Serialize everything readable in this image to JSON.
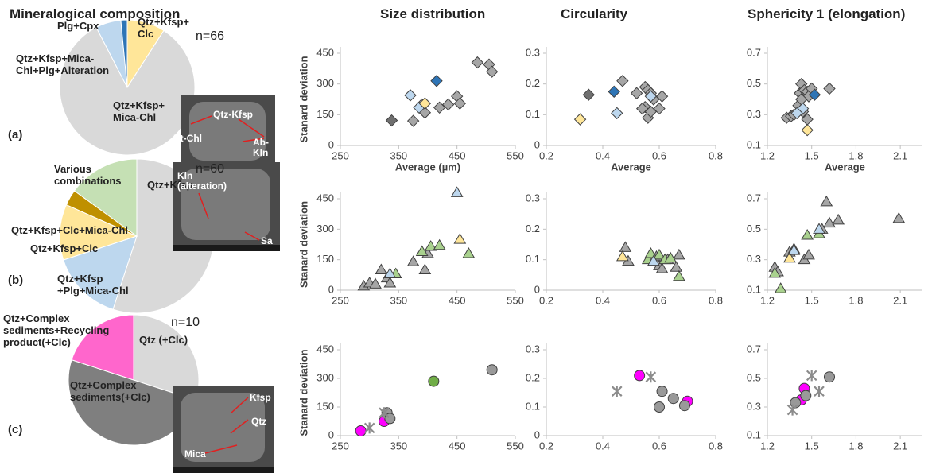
{
  "column_titles": [
    "Mineralogical composition",
    "Size distribution",
    "Circularity",
    "Sphericity 1 (elongation)"
  ],
  "panel_labels": [
    "(a)",
    "(b)",
    "(c)"
  ],
  "chart_data": [
    {
      "type": "pie",
      "annotation": "n=66",
      "categories": [
        "Qtz+Kfsp+\nClc",
        "Qtz+Kfsp+\nMica-Chl",
        "Qtz+Kfsp+Mica-\nChl+Plg+Alteration",
        "Plg+Cpx"
      ],
      "values": [
        6,
        55,
        4,
        1
      ],
      "colors": [
        "#ffe699",
        "#d9d9d9",
        "#bdd7ee",
        "#2e75b6"
      ],
      "image_labels": [
        "Qtz-Kfsp",
        "Bt-Chl",
        "Ab-\nKln"
      ]
    },
    {
      "type": "pie",
      "annotation": "n=60",
      "categories": [
        "Qtz+Kfsp",
        "Qtz+Kfsp\n+Plg+Mica-Chl",
        "Qtz+Kfsp+Clc",
        "Qtz+Kfsp+Clc+Mica-Chl",
        "Various\ncombinations"
      ],
      "values": [
        33,
        9,
        7,
        2,
        9
      ],
      "colors": [
        "#d9d9d9",
        "#bdd7ee",
        "#ffe699",
        "#bf9000",
        "#c5e0b4"
      ],
      "image_labels": [
        "Kln\n(alteration)",
        "Sa"
      ]
    },
    {
      "type": "pie",
      "annotation": "n=10",
      "categories": [
        "Qtz (+Clc)",
        "Qtz+Complex\nsediments(+Clc)",
        "Qtz+Complex\nsediments+Recycling\nproduct(+Clc)"
      ],
      "values": [
        3,
        5,
        2
      ],
      "colors": [
        "#d9d9d9",
        "#7f7f7f",
        "#ff66cc"
      ],
      "image_labels": [
        "Kfsp",
        "Qtz",
        "Mica"
      ]
    },
    {
      "type": "scatter",
      "xlabel": "Average (µm)",
      "ylabel": "Stanard deviation",
      "xlim": [
        250,
        550
      ],
      "xticks": [
        250,
        350,
        450,
        550
      ],
      "ylim": [
        0,
        450
      ],
      "yticks": [
        0,
        150,
        300,
        450
      ],
      "series": [
        {
          "color": "#a6a6a6",
          "marker": "diamond",
          "x": [
            375,
            395,
            420,
            435,
            450,
            455,
            485,
            505,
            510,
            390
          ],
          "y": [
            120,
            160,
            185,
            200,
            240,
            205,
            405,
            395,
            360,
            200
          ]
        },
        {
          "color": "#6f6f6f",
          "marker": "diamond",
          "x": [
            338
          ],
          "y": [
            122
          ]
        },
        {
          "color": "#bdd7ee",
          "marker": "diamond",
          "x": [
            370,
            385
          ],
          "y": [
            245,
            185
          ]
        },
        {
          "color": "#ffe699",
          "marker": "diamond",
          "x": [
            395
          ],
          "y": [
            205
          ]
        },
        {
          "color": "#2e75b6",
          "marker": "diamond",
          "x": [
            415
          ],
          "y": [
            315
          ]
        }
      ]
    },
    {
      "type": "scatter",
      "xlabel": "Average",
      "xlim": [
        0.2,
        0.8
      ],
      "xticks": [
        0.2,
        0.4,
        0.6,
        0.8
      ],
      "ylim": [
        0,
        0.3
      ],
      "yticks": [
        0,
        0.1,
        0.2,
        0.3
      ],
      "series": [
        {
          "color": "#a6a6a6",
          "marker": "diamond",
          "x": [
            0.47,
            0.52,
            0.55,
            0.56,
            0.57,
            0.55,
            0.54,
            0.56,
            0.57,
            0.58,
            0.61,
            0.6
          ],
          "y": [
            0.21,
            0.17,
            0.19,
            0.18,
            0.17,
            0.125,
            0.12,
            0.09,
            0.11,
            0.15,
            0.16,
            0.12
          ]
        },
        {
          "color": "#6f6f6f",
          "marker": "diamond",
          "x": [
            0.35
          ],
          "y": [
            0.165
          ]
        },
        {
          "color": "#2e75b6",
          "marker": "diamond",
          "x": [
            0.44
          ],
          "y": [
            0.175
          ]
        },
        {
          "color": "#bdd7ee",
          "marker": "diamond",
          "x": [
            0.45,
            0.57
          ],
          "y": [
            0.105,
            0.16
          ]
        },
        {
          "color": "#ffe699",
          "marker": "diamond",
          "x": [
            0.32
          ],
          "y": [
            0.085
          ]
        }
      ]
    },
    {
      "type": "scatter",
      "xlabel": "Average",
      "xlim": [
        1.2,
        2.25
      ],
      "xticks": [
        1.2,
        1.5,
        1.8,
        2.1
      ],
      "ylim": [
        0.1,
        0.7
      ],
      "yticks": [
        0.1,
        0.3,
        0.5,
        0.7
      ],
      "series": [
        {
          "color": "#a6a6a6",
          "marker": "diamond",
          "x": [
            1.33,
            1.36,
            1.38,
            1.41,
            1.42,
            1.43,
            1.45,
            1.47,
            1.48,
            1.5,
            1.43,
            1.62,
            1.47,
            1.44
          ],
          "y": [
            0.28,
            0.29,
            0.3,
            0.36,
            0.44,
            0.5,
            0.46,
            0.45,
            0.42,
            0.47,
            0.4,
            0.47,
            0.27,
            0.32
          ]
        },
        {
          "color": "#bdd7ee",
          "marker": "diamond",
          "x": [
            1.44,
            1.4
          ],
          "y": [
            0.34,
            0.31
          ]
        },
        {
          "color": "#2e75b6",
          "marker": "diamond",
          "x": [
            1.52
          ],
          "y": [
            0.43
          ]
        },
        {
          "color": "#ffe699",
          "marker": "diamond",
          "x": [
            1.47
          ],
          "y": [
            0.2
          ]
        }
      ]
    },
    {
      "type": "scatter",
      "ylabel": "Stanard deviation",
      "xlim": [
        250,
        550
      ],
      "xticks": [
        250,
        350,
        450,
        550
      ],
      "ylim": [
        0,
        450
      ],
      "yticks": [
        0,
        150,
        300,
        450
      ],
      "series": [
        {
          "color": "#a6a6a6",
          "marker": "triangle",
          "x": [
            290,
            300,
            310,
            320,
            330,
            335,
            375,
            395,
            400
          ],
          "y": [
            20,
            35,
            30,
            100,
            60,
            35,
            140,
            100,
            180
          ]
        },
        {
          "color": "#a9d18e",
          "marker": "triangle",
          "x": [
            345,
            390,
            405,
            420,
            470
          ],
          "y": [
            80,
            190,
            215,
            220,
            180
          ]
        },
        {
          "color": "#bdd7ee",
          "marker": "triangle",
          "x": [
            335,
            450
          ],
          "y": [
            80,
            480
          ]
        },
        {
          "color": "#ffe699",
          "marker": "triangle",
          "x": [
            455
          ],
          "y": [
            250
          ]
        }
      ]
    },
    {
      "type": "scatter",
      "xlim": [
        0.2,
        0.8
      ],
      "xticks": [
        0.2,
        0.4,
        0.6,
        0.8
      ],
      "ylim": [
        0,
        0.3
      ],
      "yticks": [
        0,
        0.1,
        0.2,
        0.3
      ],
      "series": [
        {
          "color": "#a6a6a6",
          "marker": "triangle",
          "x": [
            0.48,
            0.49,
            0.59,
            0.6,
            0.61,
            0.63,
            0.67,
            0.66
          ],
          "y": [
            0.14,
            0.095,
            0.11,
            0.08,
            0.07,
            0.1,
            0.115,
            0.075
          ]
        },
        {
          "color": "#a9d18e",
          "marker": "triangle",
          "x": [
            0.56,
            0.57,
            0.6,
            0.62,
            0.64,
            0.67
          ],
          "y": [
            0.1,
            0.12,
            0.115,
            0.1,
            0.105,
            0.045
          ]
        },
        {
          "color": "#ffe699",
          "marker": "triangle",
          "x": [
            0.47
          ],
          "y": [
            0.11
          ]
        },
        {
          "color": "#bdd7ee",
          "marker": "triangle",
          "x": [
            0.58
          ],
          "y": [
            0.095
          ]
        }
      ]
    },
    {
      "type": "scatter",
      "xlim": [
        1.2,
        2.25
      ],
      "xticks": [
        1.2,
        1.5,
        1.8,
        2.1
      ],
      "ylim": [
        0.1,
        0.7
      ],
      "yticks": [
        0.1,
        0.3,
        0.5,
        0.7
      ],
      "series": [
        {
          "color": "#a6a6a6",
          "marker": "triangle",
          "x": [
            1.25,
            1.27,
            1.35,
            1.38,
            1.45,
            1.48,
            1.57,
            1.6,
            1.62,
            1.68,
            2.09
          ],
          "y": [
            0.25,
            0.22,
            0.35,
            0.37,
            0.3,
            0.33,
            0.5,
            0.68,
            0.54,
            0.56,
            0.57
          ]
        },
        {
          "color": "#a9d18e",
          "marker": "triangle",
          "x": [
            1.25,
            1.29,
            1.47,
            1.55
          ],
          "y": [
            0.21,
            0.11,
            0.46,
            0.47
          ]
        },
        {
          "color": "#ffe699",
          "marker": "triangle",
          "x": [
            1.35
          ],
          "y": [
            0.31
          ]
        },
        {
          "color": "#bdd7ee",
          "marker": "triangle",
          "x": [
            1.55,
            1.38
          ],
          "y": [
            0.5,
            0.36
          ]
        }
      ]
    },
    {
      "type": "scatter",
      "ylabel": "Stanard deviation",
      "xlim": [
        250,
        550
      ],
      "xticks": [
        250,
        350,
        450,
        550
      ],
      "ylim": [
        0,
        450
      ],
      "yticks": [
        0,
        150,
        300,
        450
      ],
      "series": [
        {
          "color": "#ff00ff",
          "marker": "circle",
          "x": [
            285,
            325
          ],
          "y": [
            25,
            75
          ]
        },
        {
          "color": "#999999",
          "marker": "circle",
          "x": [
            330,
            335,
            510
          ],
          "y": [
            120,
            90,
            345
          ]
        },
        {
          "color": "#70ad47",
          "marker": "circle",
          "x": [
            410
          ],
          "y": [
            285
          ]
        },
        {
          "color": "#8c8c8c",
          "marker": "asterisk",
          "x": [
            300,
            325
          ],
          "y": [
            40,
            120
          ]
        }
      ]
    },
    {
      "type": "scatter",
      "xlim": [
        0.2,
        0.8
      ],
      "xticks": [
        0.2,
        0.4,
        0.6,
        0.8
      ],
      "ylim": [
        0,
        0.3
      ],
      "yticks": [
        0,
        0.1,
        0.2,
        0.3
      ],
      "series": [
        {
          "color": "#ff00ff",
          "marker": "circle",
          "x": [
            0.53,
            0.7
          ],
          "y": [
            0.21,
            0.12
          ]
        },
        {
          "color": "#999999",
          "marker": "circle",
          "x": [
            0.61,
            0.6,
            0.65,
            0.69
          ],
          "y": [
            0.155,
            0.1,
            0.13,
            0.105
          ]
        },
        {
          "color": "#8c8c8c",
          "marker": "asterisk",
          "x": [
            0.45,
            0.57
          ],
          "y": [
            0.155,
            0.205
          ]
        }
      ]
    },
    {
      "type": "scatter",
      "xlim": [
        1.2,
        2.25
      ],
      "xticks": [
        1.2,
        1.5,
        1.8,
        2.1
      ],
      "ylim": [
        0.1,
        0.7
      ],
      "yticks": [
        0.1,
        0.3,
        0.5,
        0.7
      ],
      "series": [
        {
          "color": "#ff00ff",
          "marker": "circle",
          "x": [
            1.43,
            1.45
          ],
          "y": [
            0.35,
            0.43
          ]
        },
        {
          "color": "#999999",
          "marker": "circle",
          "x": [
            1.39,
            1.46,
            1.62
          ],
          "y": [
            0.33,
            0.38,
            0.51
          ]
        },
        {
          "color": "#8c8c8c",
          "marker": "asterisk",
          "x": [
            1.37,
            1.5,
            1.55
          ],
          "y": [
            0.28,
            0.52,
            0.41
          ]
        }
      ]
    }
  ]
}
